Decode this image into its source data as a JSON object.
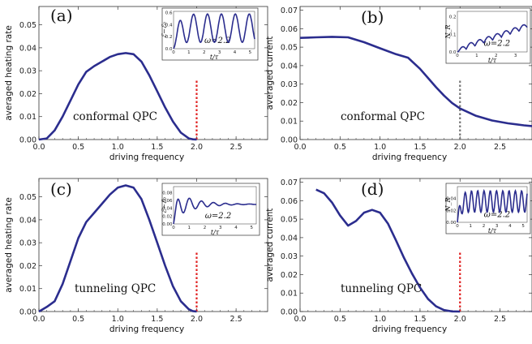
{
  "chart_data": [
    {
      "type": "line",
      "panel_label": "(a)",
      "xlabel": "driving frequency",
      "ylabel": "averaged heating rate",
      "xlim": [
        0,
        2.9
      ],
      "ylim": [
        0,
        0.058
      ],
      "xticks": [
        "0.0",
        "0.5",
        "1.0",
        "1.5",
        "2.0",
        "2.5"
      ],
      "yticks": [
        "0.00",
        "0.01",
        "0.02",
        "0.03",
        "0.04",
        "0.05"
      ],
      "annotation": "conformal QPC",
      "marker_x": 2.0,
      "marker_color": "#e02020",
      "series": [
        {
          "color": "#2b2d8e",
          "x": [
            0,
            0.1,
            0.2,
            0.3,
            0.4,
            0.5,
            0.6,
            0.7,
            0.8,
            0.9,
            1.0,
            1.1,
            1.2,
            1.3,
            1.4,
            1.5,
            1.6,
            1.7,
            1.8,
            1.9,
            1.95,
            2.0
          ],
          "y": [
            0,
            0.0005,
            0.004,
            0.01,
            0.017,
            0.024,
            0.0295,
            0.032,
            0.034,
            0.036,
            0.0372,
            0.0377,
            0.0372,
            0.034,
            0.028,
            0.021,
            0.014,
            0.0078,
            0.003,
            0.0005,
            0.0001,
            0
          ]
        }
      ],
      "inset": {
        "xlabel": "t/τ",
        "ylabel": "ℰ−ℰ₀",
        "param": "ω=2.2",
        "xticks": [
          "0",
          "1",
          "2",
          "3",
          "4",
          "5"
        ],
        "yticks": [
          "0.0",
          "0.2",
          "0.4",
          "0.6"
        ],
        "xlim": [
          0,
          5.3
        ],
        "ylim": [
          0,
          0.62
        ]
      }
    },
    {
      "type": "line",
      "panel_label": "(b)",
      "xlabel": "driving frequency",
      "ylabel": "averaged current",
      "xlim": [
        0,
        2.9
      ],
      "ylim": [
        0,
        0.072
      ],
      "xticks": [
        "0.0",
        "0.5",
        "1.0",
        "1.5",
        "2.0",
        "2.5"
      ],
      "yticks": [
        "0.00",
        "0.01",
        "0.02",
        "0.03",
        "0.04",
        "0.05",
        "0.06",
        "0.07"
      ],
      "annotation": "conformal QPC",
      "marker_x": 2.0,
      "marker_color": "#777777",
      "series": [
        {
          "color": "#2b2d8e",
          "x": [
            0,
            0.2,
            0.4,
            0.6,
            0.8,
            1.0,
            1.2,
            1.35,
            1.5,
            1.6,
            1.7,
            1.8,
            1.9,
            2.0,
            2.2,
            2.4,
            2.6,
            2.8,
            2.9
          ],
          "y": [
            0.055,
            0.0553,
            0.0556,
            0.0553,
            0.0527,
            0.0494,
            0.0462,
            0.0443,
            0.0383,
            0.0333,
            0.0283,
            0.0238,
            0.0198,
            0.0168,
            0.0128,
            0.0103,
            0.0088,
            0.0077,
            0.0073
          ]
        }
      ],
      "inset": {
        "xlabel": "t/τ",
        "ylabel": "N_R",
        "param": "ω=2.2",
        "xticks": [
          "0",
          "1",
          "2",
          "3"
        ],
        "yticks": [
          "0.0",
          "0.1",
          "0.2"
        ],
        "xlim": [
          0,
          3.6
        ],
        "ylim": [
          0,
          0.23
        ]
      }
    },
    {
      "type": "line",
      "panel_label": "(c)",
      "xlabel": "driving frequency",
      "ylabel": "averaged heating rate",
      "xlim": [
        0,
        2.9
      ],
      "ylim": [
        0,
        0.058
      ],
      "xticks": [
        "0.0",
        "0.5",
        "1.0",
        "1.5",
        "2.0",
        "2.5"
      ],
      "yticks": [
        "0.00",
        "0.01",
        "0.02",
        "0.03",
        "0.04",
        "0.05"
      ],
      "annotation": "tunneling QPC",
      "marker_x": 2.0,
      "marker_color": "#e02020",
      "series": [
        {
          "color": "#2b2d8e",
          "x": [
            0,
            0.1,
            0.2,
            0.3,
            0.4,
            0.5,
            0.6,
            0.7,
            0.8,
            0.9,
            1.0,
            1.1,
            1.2,
            1.3,
            1.4,
            1.5,
            1.6,
            1.7,
            1.8,
            1.9,
            1.95,
            2.0
          ],
          "y": [
            0,
            0.002,
            0.0045,
            0.012,
            0.022,
            0.032,
            0.039,
            0.043,
            0.047,
            0.051,
            0.054,
            0.055,
            0.054,
            0.049,
            0.04,
            0.03,
            0.02,
            0.011,
            0.0045,
            0.001,
            0.0002,
            0
          ]
        }
      ],
      "inset": {
        "xlabel": "t/τ",
        "ylabel": "ℰ−ℰ₀",
        "param": "ω=2.2",
        "xticks": [
          "0",
          "1",
          "2",
          "3",
          "4",
          "5"
        ],
        "yticks": [
          "0.00",
          "0.02",
          "0.04",
          "0.06",
          "0.08"
        ],
        "xlim": [
          0,
          5.3
        ],
        "ylim": [
          0,
          0.095
        ]
      }
    },
    {
      "type": "line",
      "panel_label": "(d)",
      "xlabel": "driving frequency",
      "ylabel": "averaged current",
      "xlim": [
        0,
        2.9
      ],
      "ylim": [
        0,
        0.072
      ],
      "xticks": [
        "0.0",
        "0.5",
        "1.0",
        "1.5",
        "2.0",
        "2.5"
      ],
      "yticks": [
        "0.00",
        "0.01",
        "0.02",
        "0.03",
        "0.04",
        "0.05",
        "0.06",
        "0.07"
      ],
      "annotation": "tunneling QPC",
      "marker_x": 2.0,
      "marker_color": "#e02020",
      "series": [
        {
          "color": "#2b2d8e",
          "x": [
            0.2,
            0.3,
            0.4,
            0.5,
            0.6,
            0.7,
            0.8,
            0.9,
            1.0,
            1.1,
            1.2,
            1.3,
            1.4,
            1.5,
            1.6,
            1.7,
            1.8,
            1.9,
            2.0
          ],
          "y": [
            0.066,
            0.064,
            0.059,
            0.052,
            0.0465,
            0.049,
            0.0535,
            0.055,
            0.0535,
            0.0475,
            0.0385,
            0.029,
            0.0205,
            0.013,
            0.0068,
            0.0028,
            0.0008,
            0.0001,
            0
          ]
        }
      ],
      "inset": {
        "xlabel": "t/τ",
        "ylabel": "N_R",
        "param": "ω=2.2",
        "xticks": [
          "0",
          "1",
          "2",
          "3",
          "4",
          "5"
        ],
        "yticks": [
          "0.00",
          "0.02",
          "0.04"
        ],
        "xlim": [
          0,
          5.3
        ],
        "ylim": [
          0,
          0.06
        ]
      }
    }
  ]
}
